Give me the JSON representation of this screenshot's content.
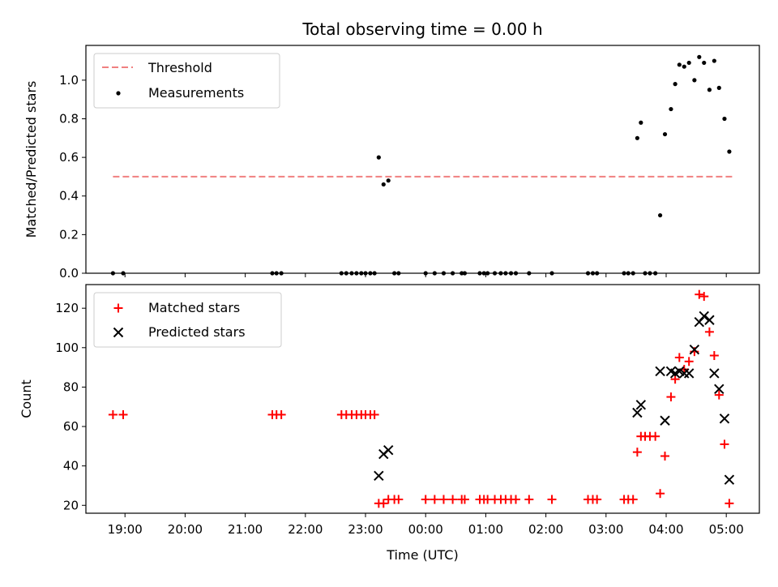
{
  "chart_data": {
    "title": "Total observing time = 0.00 h",
    "xlabel": "Time (UTC)",
    "x_ticks": [
      "19:00",
      "20:00",
      "21:00",
      "22:00",
      "23:00",
      "00:00",
      "01:00",
      "02:00",
      "03:00",
      "04:00",
      "05:00"
    ],
    "xlim_hours": [
      18.35,
      29.55
    ],
    "x_unit": "hours since 00:00 on the first evening (values above 24 are after midnight)",
    "panels": [
      {
        "type": "scatter",
        "ylabel": "Matched/Predicted stars",
        "ylim": [
          0,
          1.18
        ],
        "y_ticks": [
          0.0,
          0.2,
          0.4,
          0.6,
          0.8,
          1.0
        ],
        "legend_position": "upper-left",
        "threshold": {
          "name": "Threshold",
          "value": 0.5,
          "x_range": [
            18.8,
            29.1
          ],
          "color": "#f08080"
        },
        "series": [
          {
            "name": "Measurements",
            "color": "#000000",
            "x": [
              18.8,
              18.97,
              21.45,
              21.52,
              21.6,
              22.6,
              22.68,
              22.77,
              22.85,
              22.93,
              23.0,
              23.08,
              23.15,
              23.22,
              23.3,
              23.38,
              23.48,
              23.55,
              24.0,
              24.15,
              24.3,
              24.45,
              24.6,
              24.65,
              24.9,
              24.97,
              25.03,
              25.15,
              25.25,
              25.33,
              25.42,
              25.5,
              25.72,
              26.1,
              26.7,
              26.78,
              26.85,
              27.3,
              27.37,
              27.45,
              27.52,
              27.58,
              27.65,
              27.73,
              27.82,
              27.9,
              27.98,
              28.08,
              28.15,
              28.22,
              28.3,
              28.38,
              28.47,
              28.55,
              28.63,
              28.72,
              28.8,
              28.88,
              28.97,
              29.05
            ],
            "y": [
              0,
              0,
              0,
              0,
              0,
              0,
              0,
              0,
              0,
              0,
              0,
              0,
              0,
              0.6,
              0.46,
              0.48,
              0,
              0,
              0,
              0,
              0,
              0,
              0,
              0,
              0,
              0,
              0,
              0,
              0,
              0,
              0,
              0,
              0,
              0,
              0,
              0,
              0,
              0,
              0,
              0,
              0.7,
              0.78,
              0,
              0,
              0,
              0.3,
              0.72,
              0.85,
              0.98,
              1.08,
              1.07,
              1.09,
              1.0,
              1.12,
              1.09,
              0.95,
              1.1,
              0.96,
              0.8,
              0.63
            ]
          }
        ]
      },
      {
        "type": "scatter",
        "ylabel": "Count",
        "ylim": [
          16,
          132
        ],
        "y_ticks": [
          20,
          40,
          60,
          80,
          100,
          120
        ],
        "legend_position": "upper-left",
        "series": [
          {
            "name": "Matched stars",
            "marker": "plus",
            "color": "#ff0000",
            "x": [
              18.8,
              18.97,
              21.45,
              21.52,
              21.6,
              22.6,
              22.68,
              22.77,
              22.85,
              22.93,
              23.0,
              23.08,
              23.15,
              23.22,
              23.3,
              23.38,
              23.48,
              23.55,
              24.0,
              24.15,
              24.3,
              24.45,
              24.6,
              24.65,
              24.9,
              24.97,
              25.03,
              25.15,
              25.25,
              25.33,
              25.42,
              25.5,
              25.72,
              26.1,
              26.7,
              26.78,
              26.85,
              27.3,
              27.37,
              27.45,
              27.52,
              27.58,
              27.65,
              27.73,
              27.82,
              27.9,
              27.98,
              28.08,
              28.15,
              28.22,
              28.3,
              28.38,
              28.47,
              28.55,
              28.63,
              28.72,
              28.8,
              28.88,
              28.97,
              29.05
            ],
            "y": [
              66,
              66,
              66,
              66,
              66,
              66,
              66,
              66,
              66,
              66,
              66,
              66,
              66,
              21,
              21,
              23,
              23,
              23,
              23,
              23,
              23,
              23,
              23,
              23,
              23,
              23,
              23,
              23,
              23,
              23,
              23,
              23,
              23,
              23,
              23,
              23,
              23,
              23,
              23,
              23,
              47,
              55,
              55,
              55,
              55,
              26,
              45,
              75,
              84,
              95,
              89,
              93,
              98,
              127,
              126,
              108,
              96,
              76,
              51,
              21
            ]
          },
          {
            "name": "Predicted stars",
            "marker": "x",
            "color": "#000000",
            "x": [
              23.22,
              23.3,
              23.38,
              27.52,
              27.58,
              27.9,
              27.98,
              28.08,
              28.15,
              28.22,
              28.3,
              28.38,
              28.47,
              28.55,
              28.63,
              28.72,
              28.8,
              28.88,
              28.97,
              29.05
            ],
            "y": [
              35,
              46,
              48,
              67,
              71,
              88,
              63,
              88,
              87,
              88,
              87,
              87,
              99,
              113,
              116,
              114,
              87,
              79,
              64,
              33
            ]
          }
        ]
      }
    ]
  }
}
